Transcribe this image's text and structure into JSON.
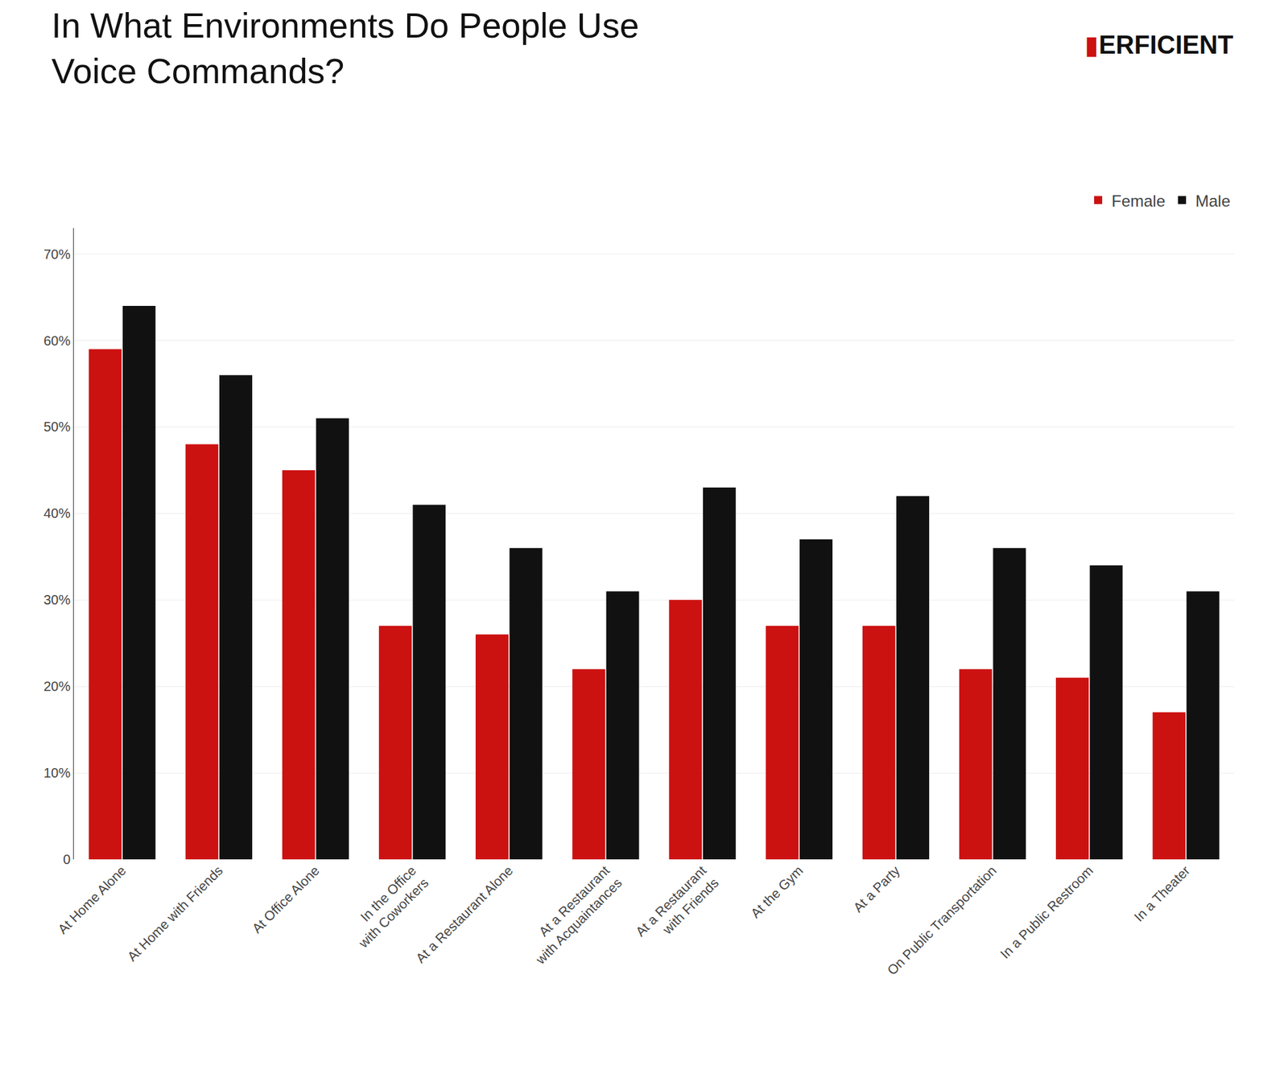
{
  "chart_data": {
    "type": "bar",
    "title": "In What Environments Do People Use\nVoice Commands?",
    "categories": [
      "At Home Alone",
      "At Home with Friends",
      "At Office Alone",
      "In the Office\nwith Coworkers",
      "At a Restaurant Alone",
      "At a Restaurant\nwith Acquaintances",
      "At a Restaurant\nwith Friends",
      "At the Gym",
      "At a Party",
      "On Public Transportation",
      "In a Public Restroom",
      "In a Theater"
    ],
    "series": [
      {
        "name": "Female",
        "color": "#cc1111",
        "values": [
          59,
          48,
          45,
          27,
          26,
          22,
          30,
          27,
          27,
          22,
          21,
          17
        ]
      },
      {
        "name": "Male",
        "color": "#111111",
        "values": [
          64,
          56,
          51,
          41,
          36,
          31,
          43,
          37,
          42,
          36,
          34,
          31
        ]
      }
    ],
    "ylim": [
      0,
      73
    ],
    "yticks": [
      0,
      {
        "value": 10,
        "label": "10%"
      },
      {
        "value": 20,
        "label": "20%"
      },
      {
        "value": 30,
        "label": "30%"
      },
      {
        "value": 40,
        "label": "40%"
      },
      {
        "value": 50,
        "label": "50%"
      },
      {
        "value": 60,
        "label": "60%"
      },
      {
        "value": 70,
        "label": "70%"
      }
    ],
    "grid": true,
    "legend": "upper right",
    "annotations": [
      {
        "text": "▮",
        "color": "#cc1111"
      },
      {
        "text": "ERFICIENT"
      }
    ]
  }
}
